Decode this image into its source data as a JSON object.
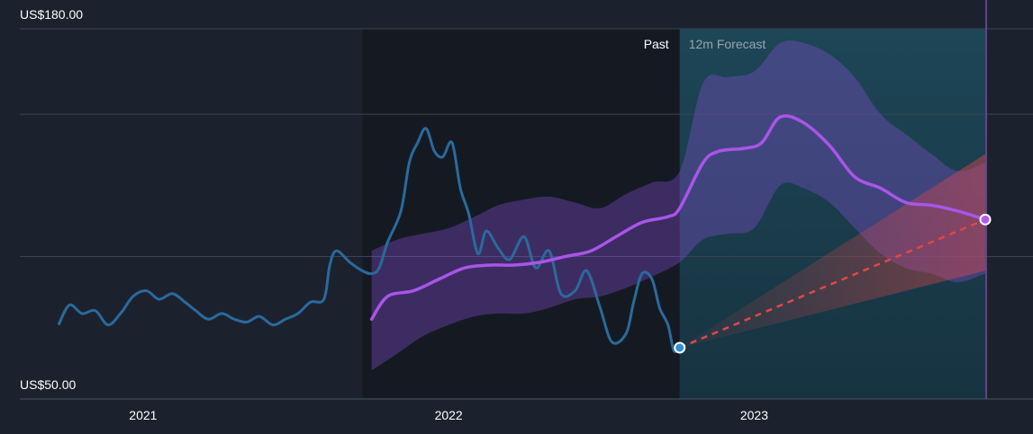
{
  "chart_data": {
    "type": "line",
    "x_axis": {
      "ticks": [
        "2021",
        "2022",
        "2023"
      ],
      "range": [
        "2020-09-22",
        "2023-10-04"
      ]
    },
    "y_axis": {
      "top_label": "US$180.00",
      "bottom_label": "US$50.00",
      "range": [
        50,
        180
      ],
      "gridlines": [
        180,
        150,
        100,
        50
      ]
    },
    "regions": {
      "past_label": "Past",
      "forecast_label": "12m Forecast",
      "forecast_start": "2022-10-04",
      "forecast_end": "2023-10-04"
    },
    "series": [
      {
        "role": "share price",
        "color": "#2a6a9e",
        "points": [
          [
            "2020-09-22",
            76
          ],
          [
            "2020-10-05",
            83
          ],
          [
            "2020-10-20",
            80
          ],
          [
            "2020-11-05",
            81
          ],
          [
            "2020-11-20",
            76
          ],
          [
            "2020-12-05",
            80
          ],
          [
            "2020-12-20",
            86
          ],
          [
            "2021-01-05",
            88
          ],
          [
            "2021-01-20",
            85
          ],
          [
            "2021-02-05",
            87
          ],
          [
            "2021-02-20",
            84
          ],
          [
            "2021-03-05",
            81
          ],
          [
            "2021-03-20",
            78
          ],
          [
            "2021-04-05",
            80
          ],
          [
            "2021-04-20",
            78
          ],
          [
            "2021-05-05",
            77
          ],
          [
            "2021-05-20",
            79
          ],
          [
            "2021-06-05",
            76
          ],
          [
            "2021-06-20",
            78
          ],
          [
            "2021-07-05",
            80
          ],
          [
            "2021-07-20",
            84
          ],
          [
            "2021-08-05",
            85
          ],
          [
            "2021-08-12",
            97
          ],
          [
            "2021-08-20",
            102
          ],
          [
            "2021-09-05",
            98
          ],
          [
            "2021-09-20",
            95
          ],
          [
            "2021-10-01",
            94
          ],
          [
            "2021-10-10",
            96
          ],
          [
            "2021-10-20",
            105
          ],
          [
            "2021-11-05",
            116
          ],
          [
            "2021-11-15",
            133
          ],
          [
            "2021-11-25",
            140
          ],
          [
            "2021-12-05",
            145
          ],
          [
            "2021-12-15",
            137
          ],
          [
            "2021-12-25",
            135
          ],
          [
            "2022-01-05",
            140
          ],
          [
            "2022-01-15",
            124
          ],
          [
            "2022-01-25",
            115
          ],
          [
            "2022-02-05",
            101
          ],
          [
            "2022-02-15",
            109
          ],
          [
            "2022-03-01",
            103
          ],
          [
            "2022-03-15",
            99
          ],
          [
            "2022-04-01",
            107
          ],
          [
            "2022-04-15",
            96
          ],
          [
            "2022-05-01",
            102
          ],
          [
            "2022-05-15",
            87
          ],
          [
            "2022-06-01",
            88
          ],
          [
            "2022-06-15",
            95
          ],
          [
            "2022-07-01",
            82
          ],
          [
            "2022-07-15",
            70
          ],
          [
            "2022-08-01",
            73
          ],
          [
            "2022-08-10",
            84
          ],
          [
            "2022-08-20",
            94
          ],
          [
            "2022-09-01",
            92
          ],
          [
            "2022-09-10",
            82
          ],
          [
            "2022-09-20",
            76
          ],
          [
            "2022-09-27",
            67
          ],
          [
            "2022-10-04",
            68
          ]
        ]
      },
      {
        "role": "forecast median",
        "color": "#a955e8",
        "points": [
          [
            "2021-10-01",
            78
          ],
          [
            "2021-10-20",
            86
          ],
          [
            "2021-11-20",
            88
          ],
          [
            "2021-12-20",
            92
          ],
          [
            "2022-01-20",
            96
          ],
          [
            "2022-02-20",
            97
          ],
          [
            "2022-03-20",
            97
          ],
          [
            "2022-04-20",
            98
          ],
          [
            "2022-05-20",
            100
          ],
          [
            "2022-06-20",
            102
          ],
          [
            "2022-07-20",
            107
          ],
          [
            "2022-08-20",
            112
          ],
          [
            "2022-09-20",
            114
          ],
          [
            "2022-10-04",
            117
          ],
          [
            "2022-11-01",
            133
          ],
          [
            "2022-11-20",
            137
          ],
          [
            "2022-12-20",
            138
          ],
          [
            "2023-01-10",
            140
          ],
          [
            "2023-02-01",
            149
          ],
          [
            "2023-03-01",
            147
          ],
          [
            "2023-04-01",
            139
          ],
          [
            "2023-05-01",
            128
          ],
          [
            "2023-06-01",
            124
          ],
          [
            "2023-07-01",
            119
          ],
          [
            "2023-08-01",
            118
          ],
          [
            "2023-09-01",
            116
          ],
          [
            "2023-10-04",
            113
          ]
        ]
      },
      {
        "role": "analyst target",
        "color": "#e04848",
        "points": [
          [
            "2022-10-04",
            68
          ],
          [
            "2023-10-04",
            113
          ]
        ]
      }
    ],
    "band": {
      "role": "forecast range",
      "color": "#8a4fd6",
      "upper": [
        [
          "2021-10-01",
          102
        ],
        [
          "2021-11-01",
          106
        ],
        [
          "2021-12-01",
          108
        ],
        [
          "2022-01-01",
          110
        ],
        [
          "2022-02-01",
          114
        ],
        [
          "2022-03-01",
          118
        ],
        [
          "2022-04-01",
          120
        ],
        [
          "2022-05-01",
          121
        ],
        [
          "2022-06-01",
          119
        ],
        [
          "2022-07-01",
          117
        ],
        [
          "2022-08-01",
          122
        ],
        [
          "2022-09-01",
          126
        ],
        [
          "2022-10-04",
          130
        ],
        [
          "2022-11-01",
          161
        ],
        [
          "2022-12-01",
          163
        ],
        [
          "2023-01-01",
          165
        ],
        [
          "2023-02-01",
          175
        ],
        [
          "2023-03-01",
          175
        ],
        [
          "2023-04-01",
          171
        ],
        [
          "2023-05-01",
          163
        ],
        [
          "2023-06-01",
          150
        ],
        [
          "2023-07-01",
          143
        ],
        [
          "2023-08-01",
          136
        ],
        [
          "2023-09-01",
          130
        ],
        [
          "2023-10-04",
          133
        ]
      ],
      "lower": [
        [
          "2021-10-01",
          60
        ],
        [
          "2021-11-01",
          66
        ],
        [
          "2021-12-01",
          72
        ],
        [
          "2022-01-01",
          76
        ],
        [
          "2022-02-01",
          79
        ],
        [
          "2022-03-01",
          80
        ],
        [
          "2022-04-01",
          80
        ],
        [
          "2022-05-01",
          82
        ],
        [
          "2022-06-01",
          85
        ],
        [
          "2022-07-01",
          86
        ],
        [
          "2022-08-01",
          89
        ],
        [
          "2022-09-01",
          93
        ],
        [
          "2022-10-04",
          98
        ],
        [
          "2022-11-01",
          106
        ],
        [
          "2022-12-01",
          108
        ],
        [
          "2023-01-01",
          110
        ],
        [
          "2023-02-01",
          125
        ],
        [
          "2023-03-01",
          124
        ],
        [
          "2023-04-01",
          119
        ],
        [
          "2023-05-01",
          110
        ],
        [
          "2023-06-01",
          101
        ],
        [
          "2023-07-01",
          96
        ],
        [
          "2023-08-01",
          94
        ],
        [
          "2023-09-01",
          91
        ],
        [
          "2023-10-04",
          94
        ]
      ]
    },
    "target_range": {
      "color": "#e04848",
      "high": 136,
      "low": 95
    },
    "colors": {
      "background": "#1b222d",
      "past_shade": "#151a22",
      "forecast_shade": "#1a3b4b",
      "gridline": "#3a4452"
    }
  }
}
